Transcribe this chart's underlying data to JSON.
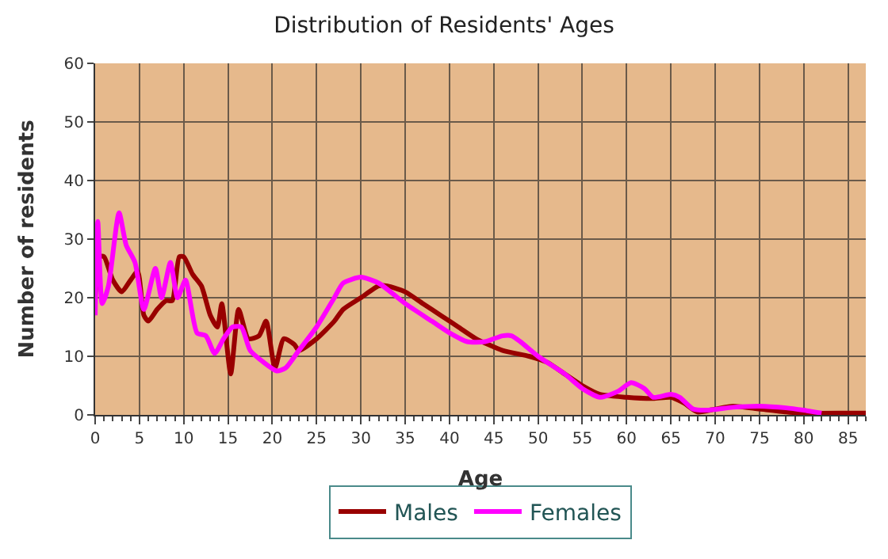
{
  "chart_data": {
    "type": "line",
    "title": "Distribution of Residents' Ages",
    "xlabel": "Age",
    "ylabel": "Number of residents",
    "xlim": [
      0,
      87
    ],
    "xticks": [
      0,
      5,
      10,
      15,
      20,
      25,
      30,
      35,
      40,
      45,
      50,
      55,
      60,
      65,
      70,
      75,
      80,
      85
    ],
    "ylim": [
      0,
      60
    ],
    "yticks": [
      0,
      10,
      20,
      30,
      40,
      50,
      60
    ],
    "grid": true,
    "legend": "bottom",
    "line_style": "solid",
    "marker": "none",
    "series": [
      {
        "name": "Males",
        "color": "#990000",
        "x": [
          0,
          0.5,
          1,
          2,
          3,
          4,
          4.8,
          5.5,
          6,
          7,
          8,
          8.7,
          9.5,
          10,
          11,
          12,
          13,
          13.8,
          14.3,
          15.3,
          16.2,
          17.3,
          18.5,
          19.3,
          20.3,
          21.3,
          22.5,
          23,
          25,
          27,
          28,
          30,
          32,
          33,
          35,
          37,
          39,
          41,
          43,
          46,
          49,
          51,
          53,
          55,
          57,
          60,
          63,
          65,
          66.5,
          68,
          70,
          72,
          75,
          78,
          80,
          85,
          87
        ],
        "values": [
          20,
          27,
          27,
          23,
          21,
          23,
          24.5,
          17,
          16,
          18,
          19.5,
          19.5,
          27,
          27,
          24,
          22,
          17,
          15,
          19,
          7,
          18,
          13,
          13.5,
          16,
          8,
          13,
          12,
          11,
          13,
          16,
          18,
          20,
          22,
          22,
          21,
          19,
          17,
          15,
          13,
          11,
          10,
          9,
          7,
          5,
          3.5,
          3,
          2.8,
          3,
          2,
          0.5,
          1,
          1.5,
          1,
          0.5,
          0.3,
          0.3,
          0.3
        ]
      },
      {
        "name": "Females",
        "color": "#ff00ff",
        "x": [
          0,
          0.3,
          0.8,
          1.5,
          2.7,
          3.5,
          4.5,
          5.5,
          6.8,
          7.5,
          8.5,
          9.3,
          10.2,
          11.5,
          12.5,
          13.5,
          14.5,
          15.5,
          16.5,
          17.5,
          19,
          20.5,
          21.5,
          23,
          25,
          27,
          28,
          30,
          32,
          35,
          38,
          40,
          42,
          44,
          46,
          47,
          48,
          50,
          53,
          55,
          57,
          59,
          60.5,
          62,
          63,
          65,
          66,
          67.5,
          69,
          72,
          75,
          78,
          80,
          82
        ],
        "values": [
          17,
          33,
          19,
          22,
          34.5,
          29,
          26,
          18,
          25,
          20,
          26,
          20,
          23,
          14,
          13.5,
          10.5,
          13,
          15,
          15,
          11,
          9,
          7.5,
          8,
          11,
          15,
          20,
          22.5,
          23.5,
          22.5,
          19,
          16,
          14,
          12.5,
          12.5,
          13.5,
          13.5,
          12.5,
          10,
          7,
          4.5,
          3,
          4,
          5.5,
          4.5,
          3,
          3.5,
          3,
          1,
          0.8,
          1.3,
          1.5,
          1.2,
          0.8,
          0.3
        ]
      }
    ]
  }
}
